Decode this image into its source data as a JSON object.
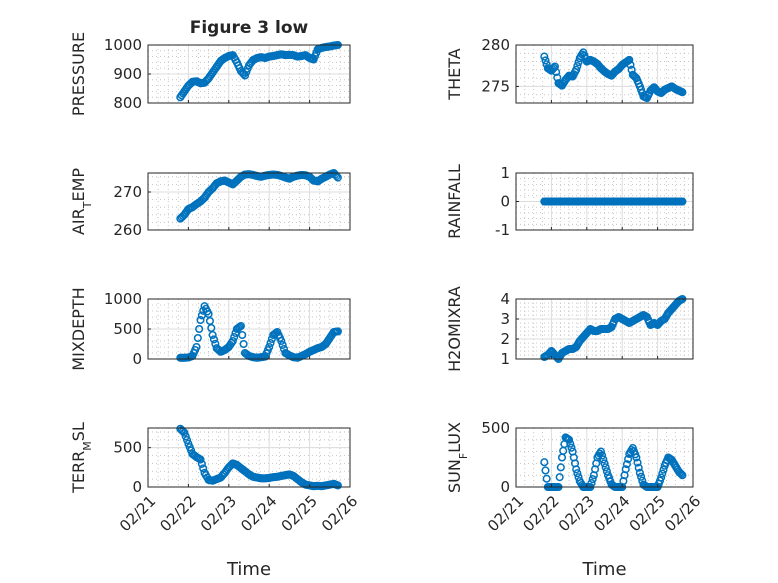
{
  "figure_title": "Figure 3 low",
  "chart_data": [
    {
      "type": "scatter",
      "id": "pressure",
      "title": "Figure 3 low",
      "ylabel": [
        {
          "t": "PRESSURE"
        }
      ],
      "ylim": [
        800,
        1000
      ],
      "yticks": [
        "800",
        "900",
        "1000"
      ],
      "ytick_values": [
        800,
        900,
        1000
      ],
      "xlim": [
        0,
        5
      ],
      "xticks": [
        "02/21",
        "02/22",
        "02/23",
        "02/24",
        "02/25",
        "02/26"
      ],
      "show_xticklabels": false,
      "xlabel": "",
      "grid": true,
      "minor_grid": true,
      "marker": "circle",
      "series": [
        {
          "x": [
            0.8,
            0.9,
            1.0,
            1.1,
            1.2,
            1.3,
            1.4,
            1.5,
            1.6,
            1.7,
            1.8,
            1.9,
            2.0,
            2.1,
            2.2,
            2.3,
            2.4,
            2.5,
            2.6,
            2.7,
            2.8,
            2.9,
            3.0,
            3.1,
            3.2,
            3.3,
            3.4,
            3.5,
            3.6,
            3.7,
            3.8,
            3.9,
            4.0,
            4.1,
            4.2,
            4.3,
            4.4,
            4.5,
            4.6,
            4.7
          ],
          "y": [
            820,
            840,
            860,
            873,
            875,
            868,
            870,
            885,
            905,
            925,
            945,
            955,
            962,
            965,
            940,
            910,
            895,
            930,
            948,
            955,
            958,
            955,
            960,
            962,
            965,
            968,
            965,
            966,
            965,
            960,
            962,
            965,
            955,
            950,
            985,
            990,
            993,
            995,
            998,
            1000
          ]
        }
      ]
    },
    {
      "type": "scatter",
      "id": "theta",
      "ylabel": [
        {
          "t": "THETA"
        }
      ],
      "ylim": [
        273,
        280
      ],
      "yticks": [
        "275",
        "280"
      ],
      "ytick_values": [
        275,
        280
      ],
      "xlim": [
        0,
        5
      ],
      "xticks": [
        "02/21",
        "02/22",
        "02/23",
        "02/24",
        "02/25",
        "02/26"
      ],
      "show_xticklabels": false,
      "xlabel": "",
      "grid": true,
      "minor_grid": true,
      "marker": "circle",
      "series": [
        {
          "x": [
            0.8,
            0.9,
            1.0,
            1.1,
            1.2,
            1.3,
            1.4,
            1.5,
            1.6,
            1.7,
            1.8,
            1.9,
            2.0,
            2.1,
            2.2,
            2.3,
            2.4,
            2.5,
            2.6,
            2.7,
            2.8,
            2.9,
            3.0,
            3.1,
            3.2,
            3.3,
            3.4,
            3.5,
            3.6,
            3.7,
            3.8,
            3.9,
            4.0,
            4.1,
            4.2,
            4.3,
            4.4,
            4.5,
            4.6,
            4.7
          ],
          "y": [
            278.6,
            277.2,
            276.9,
            277.4,
            275.4,
            275.1,
            275.8,
            276.3,
            276.2,
            277.0,
            278.4,
            279.1,
            278.0,
            278.2,
            278.0,
            277.7,
            277.2,
            276.8,
            276.5,
            276.3,
            276.8,
            277.1,
            277.6,
            277.9,
            278.2,
            276.4,
            276.0,
            275.0,
            273.8,
            273.6,
            274.5,
            274.9,
            274.4,
            274.2,
            274.6,
            274.8,
            275.0,
            274.7,
            274.5,
            274.3
          ]
        }
      ]
    },
    {
      "type": "scatter",
      "id": "air_temp",
      "ylabel": [
        {
          "t": "AIR"
        },
        {
          "t": "T",
          "sub": true
        },
        {
          "t": "EMP"
        }
      ],
      "ylim": [
        260,
        275
      ],
      "yticks": [
        "260",
        "270"
      ],
      "ytick_values": [
        260,
        270
      ],
      "xlim": [
        0,
        5
      ],
      "xticks": [
        "02/21",
        "02/22",
        "02/23",
        "02/24",
        "02/25",
        "02/26"
      ],
      "show_xticklabels": false,
      "xlabel": "",
      "grid": true,
      "minor_grid": true,
      "marker": "circle",
      "series": [
        {
          "x": [
            0.8,
            0.9,
            1.0,
            1.1,
            1.2,
            1.3,
            1.4,
            1.5,
            1.6,
            1.7,
            1.8,
            1.9,
            2.0,
            2.1,
            2.2,
            2.3,
            2.4,
            2.5,
            2.6,
            2.7,
            2.8,
            2.9,
            3.0,
            3.1,
            3.2,
            3.3,
            3.4,
            3.5,
            3.6,
            3.7,
            3.8,
            3.9,
            4.0,
            4.1,
            4.2,
            4.3,
            4.4,
            4.5,
            4.6,
            4.7
          ],
          "y": [
            263,
            264,
            265.5,
            266,
            266.8,
            267.5,
            268.5,
            270,
            271,
            272.3,
            272.8,
            273,
            272.5,
            272,
            273,
            274,
            274.6,
            274.7,
            274.5,
            274.2,
            274,
            274.3,
            274.5,
            274.6,
            274.5,
            274.2,
            273.8,
            273.5,
            274,
            274.3,
            274.5,
            274.4,
            274,
            273,
            272.8,
            273.5,
            274,
            274.6,
            275,
            273.8
          ]
        }
      ]
    },
    {
      "type": "scatter",
      "id": "rainfall",
      "ylabel": [
        {
          "t": "RAINFALL"
        }
      ],
      "ylim": [
        -1,
        1
      ],
      "yticks": [
        "-1",
        "0",
        "1"
      ],
      "ytick_values": [
        -1,
        0,
        1
      ],
      "xlim": [
        0,
        5
      ],
      "xticks": [
        "02/21",
        "02/22",
        "02/23",
        "02/24",
        "02/25",
        "02/26"
      ],
      "show_xticklabels": false,
      "xlabel": "",
      "grid": true,
      "minor_grid": true,
      "marker": "circle",
      "series": [
        {
          "x": [
            0.8,
            0.9,
            1.0,
            1.1,
            1.2,
            1.3,
            1.4,
            1.5,
            1.6,
            1.7,
            1.8,
            1.9,
            2.0,
            2.1,
            2.2,
            2.3,
            2.4,
            2.5,
            2.6,
            2.7,
            2.8,
            2.9,
            3.0,
            3.1,
            3.2,
            3.3,
            3.4,
            3.5,
            3.6,
            3.7,
            3.8,
            3.9,
            4.0,
            4.1,
            4.2,
            4.3,
            4.4,
            4.5,
            4.6,
            4.7
          ],
          "y": [
            0,
            0,
            0,
            0,
            0,
            0,
            0,
            0,
            0,
            0,
            0,
            0,
            0,
            0,
            0,
            0,
            0,
            0,
            0,
            0,
            0,
            0,
            0,
            0,
            0,
            0,
            0,
            0,
            0,
            0,
            0,
            0,
            0,
            0,
            0,
            0,
            0,
            0,
            0,
            0
          ]
        }
      ]
    },
    {
      "type": "scatter",
      "id": "mixdepth",
      "ylabel": [
        {
          "t": "MIXDEPTH"
        }
      ],
      "ylim": [
        0,
        1000
      ],
      "yticks": [
        "0",
        "500",
        "1000"
      ],
      "ytick_values": [
        0,
        500,
        1000
      ],
      "xlim": [
        0,
        5
      ],
      "xticks": [
        "02/21",
        "02/22",
        "02/23",
        "02/24",
        "02/25",
        "02/26"
      ],
      "show_xticklabels": false,
      "xlabel": "",
      "grid": true,
      "minor_grid": true,
      "marker": "circle",
      "series": [
        {
          "x": [
            0.8,
            0.9,
            1.0,
            1.1,
            1.2,
            1.3,
            1.4,
            1.5,
            1.6,
            1.7,
            1.8,
            1.9,
            2.0,
            2.1,
            2.2,
            2.3,
            2.4,
            2.5,
            2.6,
            2.7,
            2.8,
            2.9,
            3.0,
            3.1,
            3.2,
            3.3,
            3.4,
            3.5,
            3.6,
            3.7,
            3.8,
            3.9,
            4.0,
            4.1,
            4.2,
            4.3,
            4.4,
            4.5,
            4.6,
            4.7
          ],
          "y": [
            20,
            20,
            25,
            50,
            200,
            650,
            880,
            750,
            400,
            180,
            120,
            150,
            200,
            300,
            500,
            550,
            100,
            50,
            30,
            20,
            30,
            40,
            200,
            400,
            450,
            300,
            100,
            60,
            30,
            20,
            50,
            80,
            120,
            150,
            180,
            200,
            250,
            350,
            450,
            460
          ]
        }
      ]
    },
    {
      "type": "scatter",
      "id": "h2omixra",
      "ylabel": [
        {
          "t": "H2OMIXRA"
        }
      ],
      "ylim": [
        1,
        4
      ],
      "yticks": [
        "1",
        "2",
        "3",
        "4"
      ],
      "ytick_values": [
        1,
        2,
        3,
        4
      ],
      "xlim": [
        0,
        5
      ],
      "xticks": [
        "02/21",
        "02/22",
        "02/23",
        "02/24",
        "02/25",
        "02/26"
      ],
      "show_xticklabels": false,
      "xlabel": "",
      "grid": true,
      "minor_grid": true,
      "marker": "circle",
      "series": [
        {
          "x": [
            0.8,
            0.9,
            1.0,
            1.1,
            1.2,
            1.3,
            1.4,
            1.5,
            1.6,
            1.7,
            1.8,
            1.9,
            2.0,
            2.1,
            2.2,
            2.3,
            2.4,
            2.5,
            2.6,
            2.7,
            2.8,
            2.9,
            3.0,
            3.1,
            3.2,
            3.3,
            3.4,
            3.5,
            3.6,
            3.7,
            3.8,
            3.9,
            4.0,
            4.1,
            4.2,
            4.3,
            4.4,
            4.5,
            4.6,
            4.7
          ],
          "y": [
            1.1,
            1.2,
            1.4,
            1.2,
            1.0,
            1.3,
            1.4,
            1.5,
            1.5,
            1.6,
            1.9,
            2.1,
            2.3,
            2.5,
            2.4,
            2.4,
            2.5,
            2.5,
            2.5,
            2.6,
            3.0,
            3.1,
            3.0,
            2.9,
            2.8,
            2.9,
            3.0,
            3.1,
            3.2,
            3.1,
            2.7,
            2.8,
            2.7,
            2.9,
            3.0,
            3.3,
            3.5,
            3.7,
            3.9,
            4.0
          ]
        }
      ]
    },
    {
      "type": "scatter",
      "id": "terr_msl",
      "ylabel": [
        {
          "t": "TERR"
        },
        {
          "t": "M",
          "sub": true
        },
        {
          "t": "SL"
        }
      ],
      "ylim": [
        0,
        750
      ],
      "yticks": [
        "0",
        "500"
      ],
      "ytick_values": [
        0,
        500
      ],
      "xlim": [
        0,
        5
      ],
      "xticks": [
        "02/21",
        "02/22",
        "02/23",
        "02/24",
        "02/25",
        "02/26"
      ],
      "show_xticklabels": true,
      "xlabel": "Time",
      "grid": true,
      "minor_grid": true,
      "marker": "circle",
      "series": [
        {
          "x": [
            0.8,
            0.9,
            1.0,
            1.1,
            1.2,
            1.3,
            1.4,
            1.5,
            1.6,
            1.7,
            1.8,
            1.9,
            2.0,
            2.1,
            2.2,
            2.3,
            2.4,
            2.5,
            2.6,
            2.7,
            2.8,
            2.9,
            3.0,
            3.1,
            3.2,
            3.3,
            3.4,
            3.5,
            3.6,
            3.7,
            3.8,
            3.9,
            4.0,
            4.1,
            4.2,
            4.3,
            4.4,
            4.5,
            4.6,
            4.7
          ],
          "y": [
            740,
            690,
            550,
            420,
            380,
            350,
            180,
            90,
            80,
            100,
            120,
            180,
            250,
            300,
            280,
            240,
            200,
            160,
            130,
            120,
            110,
            110,
            115,
            125,
            130,
            140,
            150,
            160,
            140,
            100,
            60,
            30,
            20,
            10,
            15,
            10,
            20,
            30,
            40,
            20
          ]
        }
      ]
    },
    {
      "type": "scatter",
      "id": "sun_flux",
      "ylabel": [
        {
          "t": "SUN"
        },
        {
          "t": "F",
          "sub": true
        },
        {
          "t": "LUX"
        }
      ],
      "ylim": [
        0,
        500
      ],
      "yticks": [
        "0",
        "500"
      ],
      "ytick_values": [
        0,
        500
      ],
      "xlim": [
        0,
        5
      ],
      "xticks": [
        "02/21",
        "02/22",
        "02/23",
        "02/24",
        "02/25",
        "02/26"
      ],
      "show_xticklabels": true,
      "xlabel": "Time",
      "grid": true,
      "minor_grid": true,
      "marker": "circle",
      "series": [
        {
          "x": [
            0.8,
            0.9,
            1.0,
            1.1,
            1.2,
            1.3,
            1.4,
            1.5,
            1.6,
            1.7,
            1.8,
            1.9,
            2.0,
            2.1,
            2.2,
            2.3,
            2.4,
            2.5,
            2.6,
            2.7,
            2.8,
            2.9,
            3.0,
            3.1,
            3.2,
            3.3,
            3.4,
            3.5,
            3.6,
            3.7,
            3.8,
            3.9,
            4.0,
            4.1,
            4.2,
            4.3,
            4.4,
            4.5,
            4.6,
            4.7
          ],
          "y": [
            210,
            0,
            0,
            0,
            0,
            250,
            420,
            400,
            300,
            150,
            50,
            0,
            0,
            0,
            100,
            250,
            300,
            200,
            100,
            20,
            0,
            0,
            0,
            150,
            280,
            330,
            250,
            120,
            20,
            0,
            0,
            0,
            0,
            80,
            180,
            250,
            230,
            180,
            130,
            100
          ]
        }
      ]
    }
  ]
}
